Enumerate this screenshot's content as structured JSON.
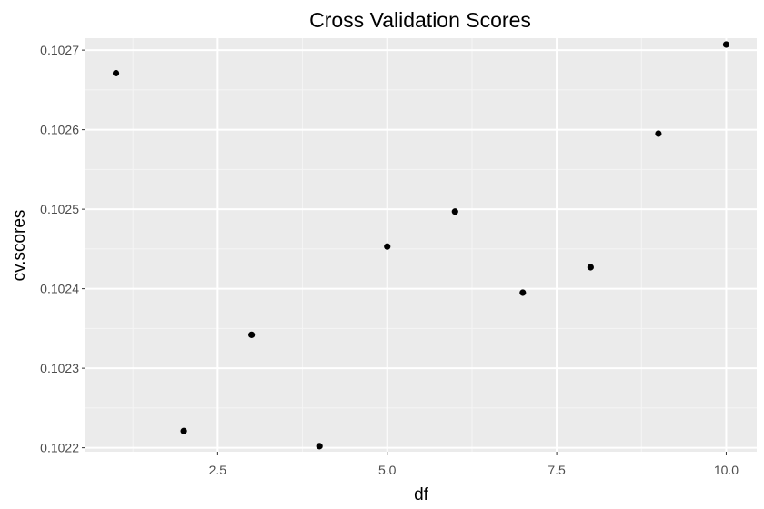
{
  "chart_data": {
    "type": "scatter",
    "title": "Cross Validation Scores",
    "xlabel": "df",
    "ylabel": "cv.scores",
    "xlim": [
      0.55,
      10.45
    ],
    "ylim": [
      0.102195,
      0.102715
    ],
    "x_ticks": [
      2.5,
      5.0,
      7.5,
      10.0
    ],
    "x_tick_labels": [
      "2.5",
      "5.0",
      "7.5",
      "10.0"
    ],
    "y_ticks": [
      0.1022,
      0.1023,
      0.1024,
      0.1025,
      0.1026,
      0.1027
    ],
    "y_tick_labels": [
      "0.1022",
      "0.1023",
      "0.1024",
      "0.1025",
      "0.1026",
      "0.1027"
    ],
    "grid": true,
    "panel_background": "#ebebeb",
    "point_color": "#000000",
    "points": [
      {
        "x": 1,
        "y": 0.102671
      },
      {
        "x": 2,
        "y": 0.102221
      },
      {
        "x": 3,
        "y": 0.102342
      },
      {
        "x": 4,
        "y": 0.102202
      },
      {
        "x": 5,
        "y": 0.102453
      },
      {
        "x": 6,
        "y": 0.102497
      },
      {
        "x": 7,
        "y": 0.102395
      },
      {
        "x": 8,
        "y": 0.102427
      },
      {
        "x": 9,
        "y": 0.102595
      },
      {
        "x": 10,
        "y": 0.102707
      }
    ]
  }
}
